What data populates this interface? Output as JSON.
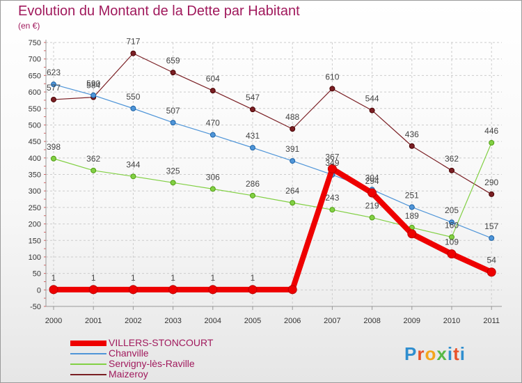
{
  "chart_data": {
    "type": "line",
    "title": "Evolution du Montant de la Dette par Habitant",
    "subtitle": "(en €)",
    "x": [
      "2000",
      "2001",
      "2002",
      "2003",
      "2004",
      "2005",
      "2006",
      "2007",
      "2008",
      "2009",
      "2010",
      "2011"
    ],
    "ylim": [
      -50,
      750
    ],
    "yticks": [
      -50,
      0,
      50,
      100,
      150,
      200,
      250,
      300,
      350,
      400,
      450,
      500,
      550,
      600,
      650,
      700,
      750
    ],
    "grid": true,
    "legend_position": "bottom-left",
    "series": [
      {
        "name": "Maizeroy",
        "color": "#7a1f24",
        "values": [
          577,
          584,
          717,
          659,
          604,
          547,
          488,
          610,
          544,
          436,
          362,
          290
        ]
      },
      {
        "name": "Chanville",
        "color": "#4f95d8",
        "values": [
          623,
          590,
          550,
          507,
          470,
          431,
          391,
          349,
          304,
          251,
          205,
          157
        ]
      },
      {
        "name": "Servigny-lès-Raville",
        "color": "#82d044",
        "values": [
          398,
          362,
          344,
          325,
          306,
          286,
          264,
          243,
          219,
          189,
          160,
          446
        ]
      },
      {
        "name": "VILLERS-STONCOURT",
        "color": "#ee0000",
        "values": [
          1,
          1,
          1,
          1,
          1,
          1,
          1,
          367,
          294,
          170,
          109,
          54
        ]
      }
    ],
    "point_labels": [
      {
        "name": "Maizeroy",
        "labels": [
          "577",
          "584",
          "717",
          "659",
          "604",
          "547",
          "488",
          "610",
          "544",
          "436",
          "362",
          "290"
        ]
      },
      {
        "name": "Chanville",
        "labels": [
          "623",
          "590",
          "550",
          "507",
          "470",
          "431",
          "391",
          "349",
          "304",
          "251",
          "205",
          "157"
        ]
      },
      {
        "name": "Servigny-lès-Raville",
        "labels": [
          "398",
          "362",
          "344",
          "325",
          "306",
          "286",
          "264",
          "243",
          "219",
          "189",
          "160",
          "446"
        ]
      },
      {
        "name": "VILLERS-STONCOURT",
        "labels": [
          "1",
          "1",
          "1",
          "1",
          "1",
          "1",
          "",
          "367",
          "294",
          "",
          "109",
          "54"
        ]
      }
    ],
    "legend_order": [
      "VILLERS-STONCOURT",
      "Chanville",
      "Servigny-lès-Raville",
      "Maizeroy"
    ]
  },
  "logo": {
    "letters": [
      "P",
      "r",
      "o",
      "x",
      "i",
      "t",
      "i"
    ]
  }
}
